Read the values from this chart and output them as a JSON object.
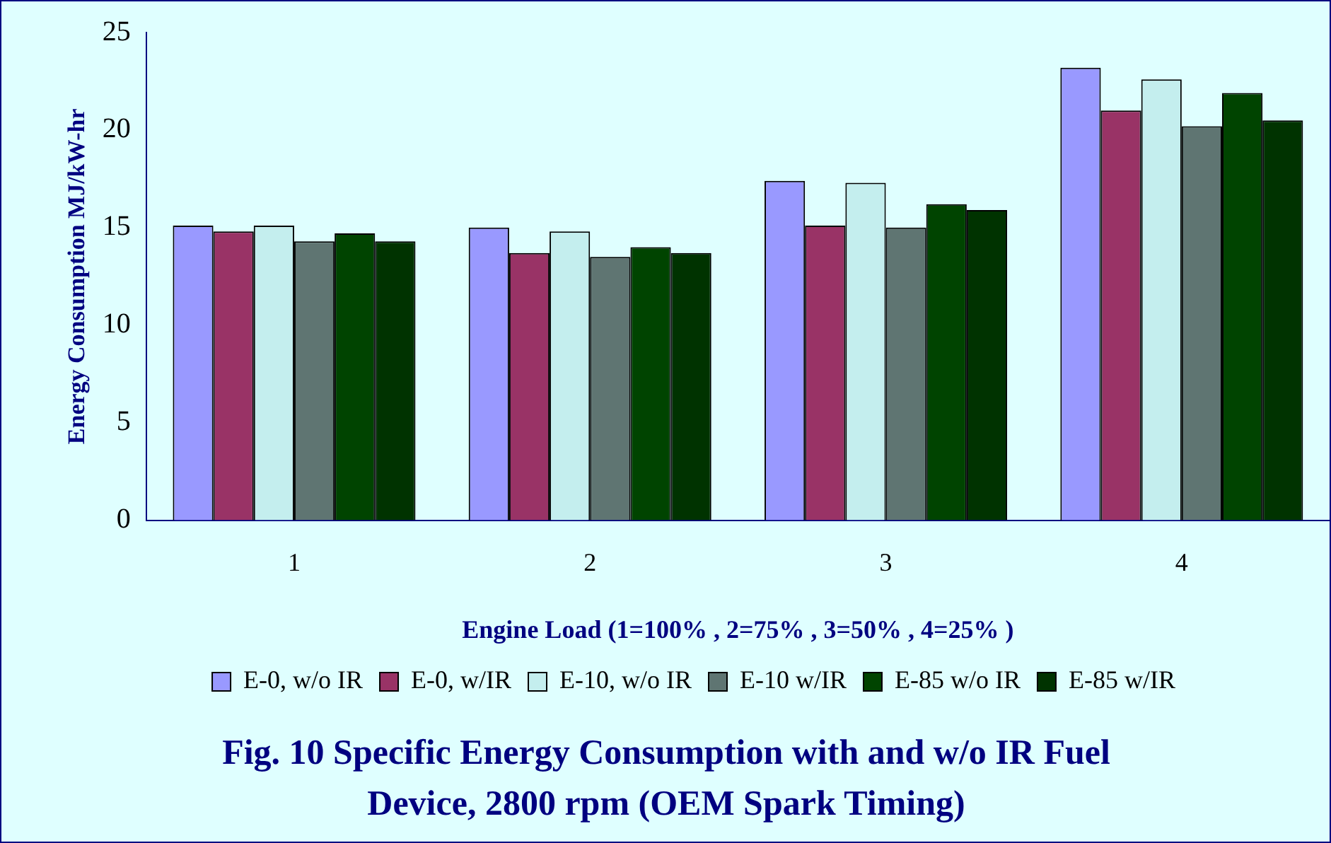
{
  "chart_data": {
    "type": "bar",
    "title": "Fig. 10  Specific Energy Consumption with and w/o IR Fuel Device, 2800 rpm (OEM Spark Timing)",
    "xlabel": "Engine Load (1=100% , 2=75% , 3=50% , 4=25% )",
    "ylabel": "Energy Consumption MJ/kW-hr",
    "categories": [
      "1",
      "2",
      "3",
      "4"
    ],
    "series": [
      {
        "name": "E-0, w/o IR",
        "color": "#9999ff",
        "values": [
          15.1,
          15.0,
          17.4,
          23.2
        ]
      },
      {
        "name": "E-0, w/IR",
        "color": "#993366",
        "values": [
          14.8,
          13.7,
          15.1,
          21.0
        ]
      },
      {
        "name": "E-10, w/o IR",
        "color": "#c4eeee",
        "values": [
          15.1,
          14.8,
          17.3,
          22.6
        ]
      },
      {
        "name": "E-10 w/IR",
        "color": "#5f7572",
        "values": [
          14.3,
          13.5,
          15.0,
          20.2
        ]
      },
      {
        "name": "E-85 w/o IR",
        "color": "#004400",
        "values": [
          14.7,
          14.0,
          16.2,
          21.9
        ]
      },
      {
        "name": "E-85 w/IR",
        "color": "#003300",
        "values": [
          14.3,
          13.7,
          15.9,
          20.5
        ]
      }
    ],
    "ylim": [
      0,
      25
    ],
    "yticks": [
      0,
      5,
      10,
      15,
      20,
      25
    ],
    "grid": false,
    "legend": "bottom"
  }
}
